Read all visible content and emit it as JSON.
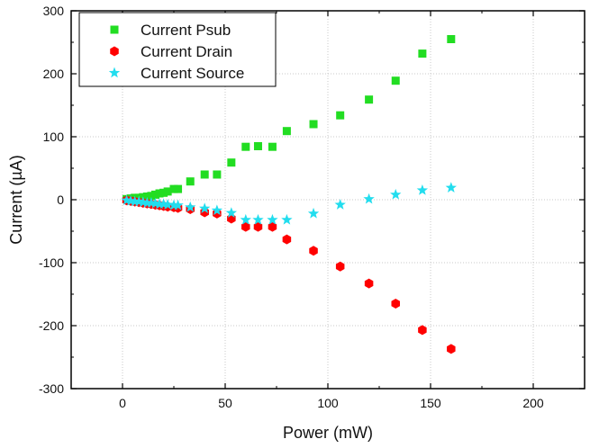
{
  "chart_data": {
    "type": "scatter",
    "title": "",
    "xlabel": "Power (mW)",
    "ylabel": "Current (µA)",
    "xlim": [
      -25,
      225
    ],
    "ylim": [
      -300,
      300
    ],
    "xticks": [
      0,
      50,
      100,
      150,
      200
    ],
    "yticks": [
      -300,
      -200,
      -100,
      0,
      100,
      200,
      300
    ],
    "grid": true,
    "legend_position": "top-left",
    "series": [
      {
        "name": "Current Psub",
        "marker": "square",
        "color": "#22dd22",
        "points": [
          [
            2,
            1
          ],
          [
            4,
            2
          ],
          [
            6,
            3
          ],
          [
            8,
            3
          ],
          [
            10,
            4
          ],
          [
            12,
            5
          ],
          [
            14,
            6
          ],
          [
            16,
            8
          ],
          [
            18,
            10
          ],
          [
            20,
            11
          ],
          [
            22,
            13
          ],
          [
            25,
            17
          ],
          [
            27,
            17
          ],
          [
            33,
            29
          ],
          [
            40,
            40
          ],
          [
            46,
            40
          ],
          [
            53,
            59
          ],
          [
            60,
            84
          ],
          [
            66,
            85
          ],
          [
            73,
            84
          ],
          [
            80,
            109
          ],
          [
            93,
            120
          ],
          [
            106,
            134
          ],
          [
            120,
            159
          ],
          [
            133,
            189
          ],
          [
            146,
            232
          ],
          [
            160,
            255
          ]
        ]
      },
      {
        "name": "Current Drain",
        "marker": "hexagon",
        "color": "#ff0000",
        "points": [
          [
            2,
            -1
          ],
          [
            4,
            -2
          ],
          [
            6,
            -3
          ],
          [
            8,
            -4
          ],
          [
            10,
            -5
          ],
          [
            12,
            -6
          ],
          [
            14,
            -7
          ],
          [
            16,
            -8
          ],
          [
            18,
            -9
          ],
          [
            20,
            -10
          ],
          [
            22,
            -11
          ],
          [
            25,
            -12
          ],
          [
            27,
            -13
          ],
          [
            33,
            -15
          ],
          [
            40,
            -20
          ],
          [
            46,
            -22
          ],
          [
            53,
            -30
          ],
          [
            60,
            -43
          ],
          [
            66,
            -43
          ],
          [
            73,
            -43
          ],
          [
            80,
            -63
          ],
          [
            93,
            -81
          ],
          [
            106,
            -106
          ],
          [
            120,
            -133
          ],
          [
            133,
            -165
          ],
          [
            146,
            -207
          ],
          [
            160,
            -237
          ]
        ]
      },
      {
        "name": "Current Source",
        "marker": "star",
        "color": "#22ddee",
        "points": [
          [
            2,
            -1
          ],
          [
            4,
            -2
          ],
          [
            6,
            -3
          ],
          [
            8,
            -3
          ],
          [
            10,
            -4
          ],
          [
            12,
            -5
          ],
          [
            14,
            -5
          ],
          [
            16,
            -6
          ],
          [
            18,
            -7
          ],
          [
            20,
            -7
          ],
          [
            22,
            -8
          ],
          [
            25,
            -9
          ],
          [
            27,
            -9
          ],
          [
            33,
            -12
          ],
          [
            40,
            -14
          ],
          [
            46,
            -17
          ],
          [
            53,
            -21
          ],
          [
            60,
            -32
          ],
          [
            66,
            -32
          ],
          [
            73,
            -32
          ],
          [
            80,
            -32
          ],
          [
            93,
            -22
          ],
          [
            106,
            -8
          ],
          [
            120,
            1
          ],
          [
            133,
            8
          ],
          [
            146,
            15
          ],
          [
            160,
            19
          ]
        ]
      }
    ]
  }
}
